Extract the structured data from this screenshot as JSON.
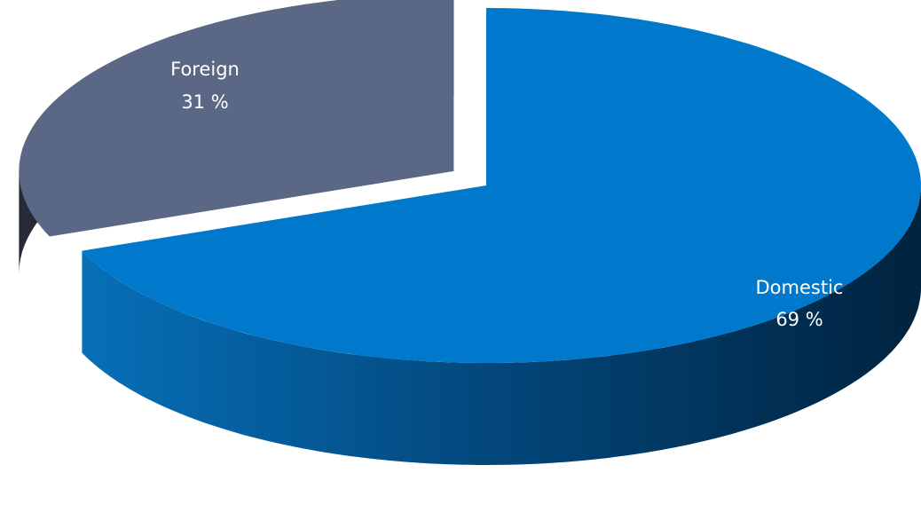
{
  "chart_data": {
    "type": "pie",
    "style": "3d-exploded",
    "title": "",
    "slices": [
      {
        "label": "Domestic",
        "value": 69,
        "value_label": "69 %",
        "color": "#0079CC",
        "side_color": "#002E52",
        "exploded": false
      },
      {
        "label": "Foreign",
        "value": 31,
        "value_label": "31 %",
        "color": "#5A6785",
        "side_color": "#272B38",
        "exploded": true
      }
    ],
    "legend": "none"
  }
}
